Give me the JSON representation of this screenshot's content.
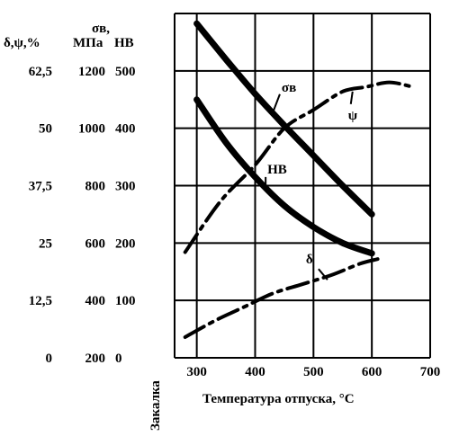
{
  "chart_data": {
    "type": "line",
    "x_axis": {
      "label": "Температура отпуска, °C",
      "ticks": [
        "300",
        "400",
        "500",
        "600",
        "700"
      ],
      "tick_values": [
        300,
        400,
        500,
        600,
        700
      ],
      "range": [
        262,
        700
      ],
      "origin_label": "Закалка"
    },
    "y_axes": [
      {
        "header": "δ,ψ,%",
        "ticks": [
          "0",
          "12,5",
          "25",
          "37,5",
          "50",
          "62,5"
        ],
        "tick_values": [
          0,
          12.5,
          25,
          37.5,
          50,
          62.5
        ],
        "range": [
          0,
          75
        ]
      },
      {
        "header_top": "σв,",
        "header": "МПа",
        "ticks": [
          "200",
          "400",
          "600",
          "800",
          "1000",
          "1200"
        ],
        "tick_values": [
          200,
          400,
          600,
          800,
          1000,
          1200
        ],
        "range": [
          200,
          1400
        ]
      },
      {
        "header": "HB",
        "ticks": [
          "0",
          "100",
          "200",
          "300",
          "400",
          "500"
        ],
        "tick_values": [
          0,
          100,
          200,
          300,
          400,
          500
        ],
        "range": [
          0,
          600
        ]
      }
    ],
    "series": [
      {
        "name": "σв",
        "axis": 1,
        "style": "solid",
        "x": [
          300,
          350,
          400,
          450,
          500,
          550,
          600
        ],
        "y": [
          1365,
          1240,
          1120,
          1010,
          905,
          800,
          700
        ]
      },
      {
        "name": "HB",
        "axis": 2,
        "style": "solid",
        "x": [
          300,
          350,
          400,
          450,
          500,
          550,
          600
        ],
        "y": [
          450,
          375,
          315,
          265,
          228,
          200,
          182
        ]
      },
      {
        "name": "ψ",
        "axis": 0,
        "style": "dashdot",
        "x": [
          280,
          340,
          400,
          450,
          500,
          550,
          590,
          630,
          670
        ],
        "y": [
          23,
          34,
          42,
          50,
          54,
          58,
          59,
          60,
          59
        ]
      },
      {
        "name": "δ",
        "axis": 0,
        "style": "dashdot",
        "x": [
          280,
          330,
          380,
          430,
          480,
          530,
          580,
          610
        ],
        "y": [
          4.5,
          8,
          11,
          14,
          16,
          18,
          20.5,
          21.5
        ]
      }
    ],
    "grid": true
  }
}
